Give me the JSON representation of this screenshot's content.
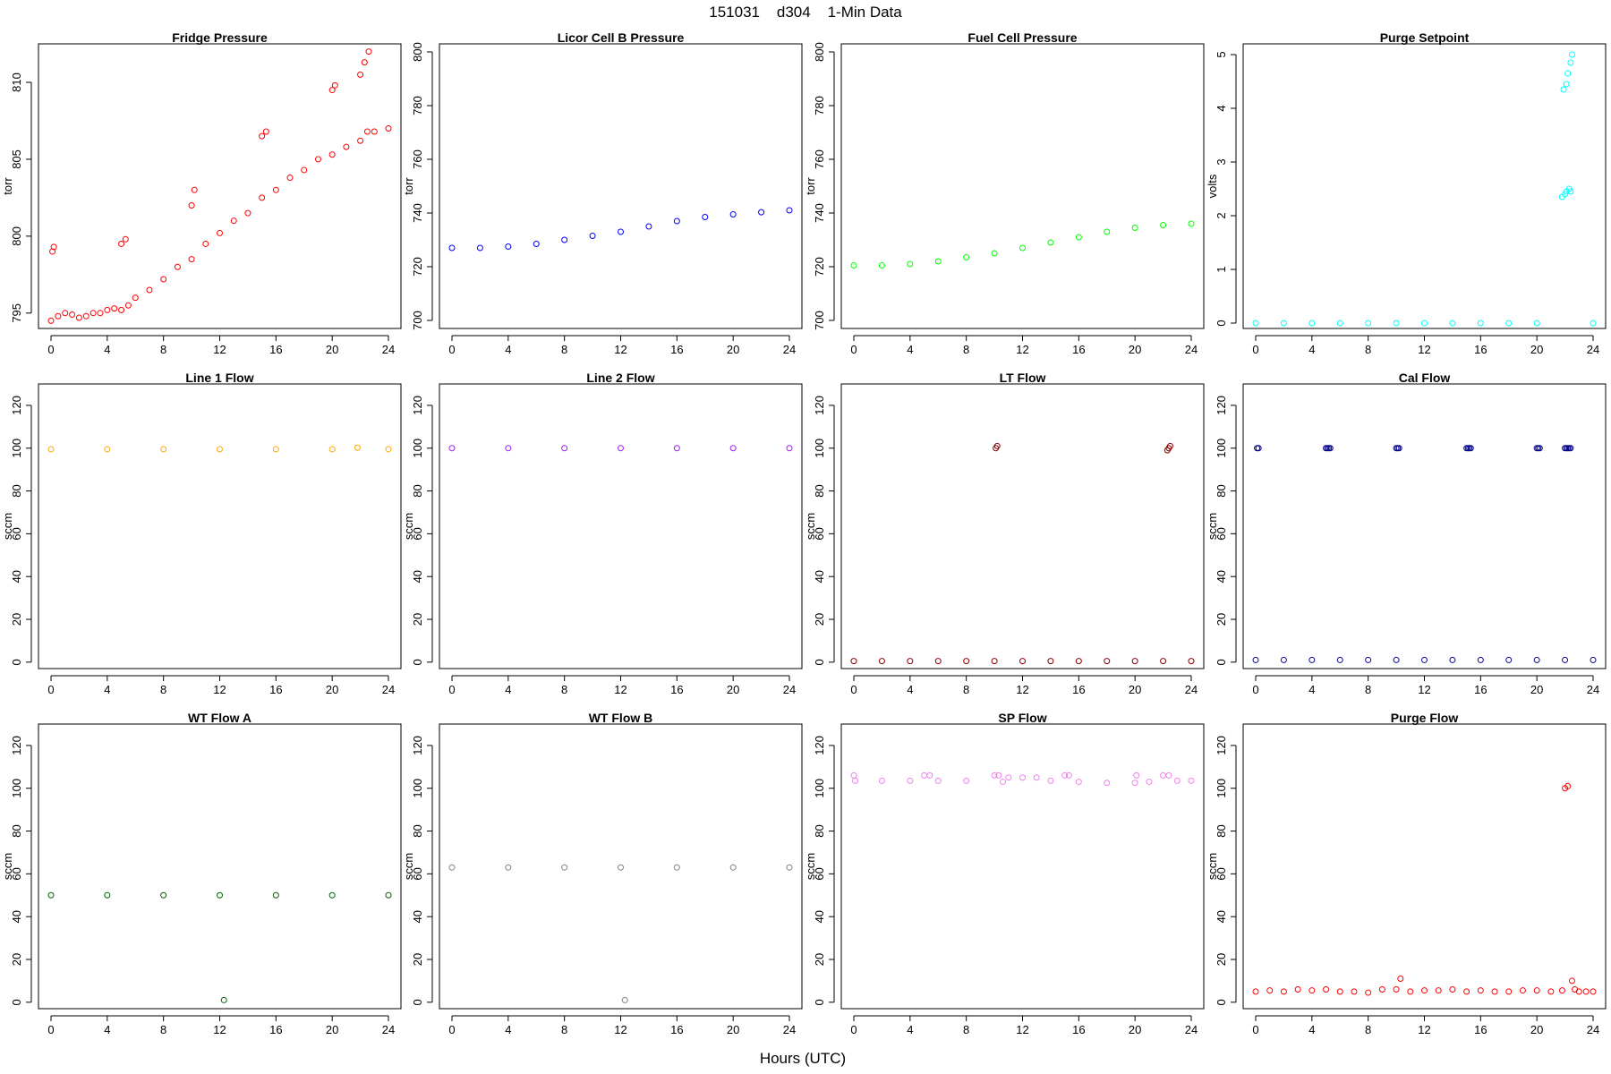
{
  "figure": {
    "title": "151031    d304    1-Min Data",
    "xlabel": "Hours (UTC)"
  },
  "chart_data": [
    {
      "type": "scatter",
      "title": "Fridge Pressure",
      "ylabel": "torr",
      "color": "#ff0000",
      "xlim": [
        0,
        24
      ],
      "ylim": [
        794,
        812.5
      ],
      "xticks": [
        0,
        4,
        8,
        12,
        16,
        20,
        24
      ],
      "yticks": [
        795,
        800,
        805,
        810
      ],
      "series": [
        {
          "x": [
            0,
            0.5,
            1,
            1.5,
            2,
            2.5,
            3,
            3.5,
            4,
            4.5,
            5,
            5.5,
            6,
            7,
            8,
            9,
            10,
            11,
            12,
            13,
            14,
            15,
            16,
            17,
            18,
            19,
            20,
            21,
            22,
            22.5,
            23,
            24,
            0.1,
            0.2,
            5,
            5.3,
            10,
            10.2,
            15,
            15.3,
            20,
            20.2,
            22,
            22.3,
            22.6
          ],
          "y": [
            794.5,
            794.8,
            795,
            794.9,
            794.7,
            794.8,
            795,
            795,
            795.2,
            795.3,
            795.2,
            795.5,
            796,
            796.5,
            797.2,
            798,
            798.5,
            799.5,
            800.2,
            801,
            801.5,
            802.5,
            803,
            803.8,
            804.3,
            805,
            805.3,
            805.8,
            806.2,
            806.8,
            806.8,
            807,
            799,
            799.3,
            799.5,
            799.8,
            802,
            803,
            806.5,
            806.8,
            809.5,
            809.8,
            810.5,
            811.3,
            812
          ]
        }
      ]
    },
    {
      "type": "scatter",
      "title": "Licor Cell B Pressure",
      "ylabel": "torr",
      "color": "#0000ff",
      "xlim": [
        0,
        24
      ],
      "ylim": [
        697,
        803
      ],
      "xticks": [
        0,
        4,
        8,
        12,
        16,
        20,
        24
      ],
      "yticks": [
        700,
        720,
        740,
        760,
        780,
        800
      ],
      "series": [
        {
          "x": [
            0,
            2,
            4,
            6,
            8,
            10,
            12,
            14,
            16,
            18,
            20,
            22,
            24
          ],
          "y": [
            727,
            727,
            727.5,
            728.5,
            730,
            731.5,
            733,
            735,
            737,
            738.5,
            739.5,
            740.3,
            741
          ]
        }
      ]
    },
    {
      "type": "scatter",
      "title": "Fuel Cell Pressure",
      "ylabel": "torr",
      "color": "#00ff00",
      "xlim": [
        0,
        24
      ],
      "ylim": [
        697,
        803
      ],
      "xticks": [
        0,
        4,
        8,
        12,
        16,
        20,
        24
      ],
      "yticks": [
        700,
        720,
        740,
        760,
        780,
        800
      ],
      "series": [
        {
          "x": [
            0,
            2,
            4,
            6,
            8,
            10,
            12,
            14,
            16,
            18,
            20,
            22,
            24
          ],
          "y": [
            720.5,
            720.5,
            721,
            722,
            723.5,
            725,
            727,
            729,
            731,
            733,
            734.5,
            735.5,
            736
          ]
        }
      ]
    },
    {
      "type": "scatter",
      "title": "Purge Setpoint",
      "ylabel": "volts",
      "color": "#00ffff",
      "xlim": [
        0,
        24
      ],
      "ylim": [
        -0.1,
        5.2
      ],
      "xticks": [
        0,
        4,
        8,
        12,
        16,
        20,
        24
      ],
      "yticks": [
        0,
        1,
        2,
        3,
        4,
        5
      ],
      "series": [
        {
          "x": [
            0,
            2,
            4,
            6,
            8,
            10,
            12,
            14,
            16,
            18,
            20,
            21.8,
            22,
            22.1,
            22.3,
            22.4,
            21.9,
            22.1,
            22.2,
            22.4,
            22.5,
            24
          ],
          "y": [
            0,
            0,
            0,
            0,
            0,
            0,
            0,
            0,
            0,
            0,
            0,
            2.35,
            2.4,
            2.45,
            2.5,
            2.45,
            4.35,
            4.45,
            4.65,
            4.85,
            5,
            0
          ]
        }
      ]
    },
    {
      "type": "scatter",
      "title": "Line 1 Flow",
      "ylabel": "sccm",
      "color": "#ffa500",
      "xlim": [
        0,
        24
      ],
      "ylim": [
        -3,
        130
      ],
      "xticks": [
        0,
        4,
        8,
        12,
        16,
        20,
        24
      ],
      "yticks": [
        0,
        20,
        40,
        60,
        80,
        100,
        120
      ],
      "series": [
        {
          "x": [
            0,
            4,
            8,
            12,
            16,
            20,
            21.8,
            24
          ],
          "y": [
            99.5,
            99.5,
            99.5,
            99.5,
            99.5,
            99.5,
            100.2,
            99.5
          ]
        }
      ]
    },
    {
      "type": "scatter",
      "title": "Line 2 Flow",
      "ylabel": "sccm",
      "color": "#a020f0",
      "xlim": [
        0,
        24
      ],
      "ylim": [
        -3,
        130
      ],
      "xticks": [
        0,
        4,
        8,
        12,
        16,
        20,
        24
      ],
      "yticks": [
        0,
        20,
        40,
        60,
        80,
        100,
        120
      ],
      "series": [
        {
          "x": [
            0,
            4,
            8,
            12,
            16,
            20,
            24
          ],
          "y": [
            100,
            100,
            100,
            100,
            100,
            100,
            100
          ]
        }
      ]
    },
    {
      "type": "scatter",
      "title": "LT Flow",
      "ylabel": "sccm",
      "color": "#8b0000",
      "xlim": [
        0,
        24
      ],
      "ylim": [
        -3,
        130
      ],
      "xticks": [
        0,
        4,
        8,
        12,
        16,
        20,
        24
      ],
      "yticks": [
        0,
        20,
        40,
        60,
        80,
        100,
        120
      ],
      "series": [
        {
          "x": [
            0,
            2,
            4,
            6,
            8,
            10,
            12,
            14,
            16,
            18,
            20,
            22,
            24,
            10.1,
            10.2,
            22.3,
            22.4,
            22.5
          ],
          "y": [
            0.5,
            0.5,
            0.5,
            0.5,
            0.5,
            0.5,
            0.5,
            0.5,
            0.5,
            0.5,
            0.5,
            0.5,
            0.5,
            100,
            101,
            99,
            100,
            101
          ]
        }
      ]
    },
    {
      "type": "scatter",
      "title": "Cal Flow",
      "ylabel": "sccm",
      "color": "#00008b",
      "xlim": [
        0,
        24
      ],
      "ylim": [
        -3,
        130
      ],
      "xticks": [
        0,
        4,
        8,
        12,
        16,
        20,
        24
      ],
      "yticks": [
        0,
        20,
        40,
        60,
        80,
        100,
        120
      ],
      "series": [
        {
          "x": [
            0,
            2,
            4,
            6,
            8,
            10,
            12,
            14,
            16,
            18,
            20,
            22,
            24,
            0.1,
            0.2,
            5,
            5.1,
            5.2,
            5.3,
            10,
            10.1,
            10.2,
            15,
            15.1,
            15.2,
            15.3,
            20,
            20.1,
            20.2,
            22,
            22.1,
            22.2,
            22.3,
            22.4
          ],
          "y": [
            1,
            1,
            1,
            1,
            1,
            1,
            1,
            1,
            1,
            1,
            1,
            1,
            1,
            100,
            100,
            100,
            100,
            100,
            100,
            100,
            100,
            100,
            100,
            100,
            100,
            100,
            100,
            100,
            100,
            100,
            100,
            100,
            100,
            100
          ]
        }
      ]
    },
    {
      "type": "scatter",
      "title": "WT Flow A",
      "ylabel": "sccm",
      "color": "#006400",
      "xlim": [
        0,
        24
      ],
      "ylim": [
        -3,
        130
      ],
      "xticks": [
        0,
        4,
        8,
        12,
        16,
        20,
        24
      ],
      "yticks": [
        0,
        20,
        40,
        60,
        80,
        100,
        120
      ],
      "series": [
        {
          "x": [
            0,
            4,
            8,
            12,
            16,
            20,
            24,
            12.3
          ],
          "y": [
            50,
            50,
            50,
            50,
            50,
            50,
            50,
            1
          ]
        }
      ]
    },
    {
      "type": "scatter",
      "title": "WT Flow B",
      "ylabel": "sccm",
      "color": "#808080",
      "xlim": [
        0,
        24
      ],
      "ylim": [
        -3,
        130
      ],
      "xticks": [
        0,
        4,
        8,
        12,
        16,
        20,
        24
      ],
      "yticks": [
        0,
        20,
        40,
        60,
        80,
        100,
        120
      ],
      "series": [
        {
          "x": [
            0,
            4,
            8,
            12,
            16,
            20,
            24,
            12.3
          ],
          "y": [
            63,
            63,
            63,
            63,
            63,
            63,
            63,
            1
          ]
        }
      ]
    },
    {
      "type": "scatter",
      "title": "SP Flow",
      "ylabel": "sccm",
      "color": "#ee82ee",
      "xlim": [
        0,
        24
      ],
      "ylim": [
        -3,
        130
      ],
      "xticks": [
        0,
        4,
        8,
        12,
        16,
        20,
        24
      ],
      "yticks": [
        0,
        20,
        40,
        60,
        80,
        100,
        120
      ],
      "series": [
        {
          "x": [
            0,
            0.1,
            2,
            4,
            5,
            5.4,
            6,
            8,
            10,
            10.3,
            10.6,
            11,
            12,
            13,
            14,
            15,
            15.3,
            16,
            18,
            20,
            20.1,
            21,
            22,
            22.4,
            23,
            24
          ],
          "y": [
            106,
            103.5,
            103.5,
            103.5,
            106,
            106,
            103.5,
            103.5,
            106,
            106,
            103,
            105,
            105,
            105,
            103.5,
            106,
            106,
            103,
            102.5,
            102.5,
            106,
            103,
            106,
            106,
            103.5,
            103.5
          ]
        }
      ]
    },
    {
      "type": "scatter",
      "title": "Purge Flow",
      "ylabel": "sccm",
      "color": "#ff0000",
      "xlim": [
        0,
        24
      ],
      "ylim": [
        -3,
        130
      ],
      "xticks": [
        0,
        4,
        8,
        12,
        16,
        20,
        24
      ],
      "yticks": [
        0,
        20,
        40,
        60,
        80,
        100,
        120
      ],
      "series": [
        {
          "x": [
            0,
            1,
            2,
            3,
            4,
            5,
            6,
            7,
            8,
            9,
            10,
            10.3,
            11,
            12,
            13,
            14,
            15,
            16,
            17,
            18,
            19,
            20,
            21,
            21.8,
            22,
            22.2,
            22.5,
            22.7,
            23,
            23.5,
            24
          ],
          "y": [
            5,
            5.5,
            5,
            6,
            5.5,
            6,
            5,
            5,
            4.5,
            6,
            6,
            11,
            5,
            5.5,
            5.5,
            6,
            5,
            5.5,
            5,
            5,
            5.5,
            5.5,
            5,
            5.5,
            100,
            101,
            10,
            6,
            5,
            5,
            5
          ]
        }
      ]
    }
  ]
}
